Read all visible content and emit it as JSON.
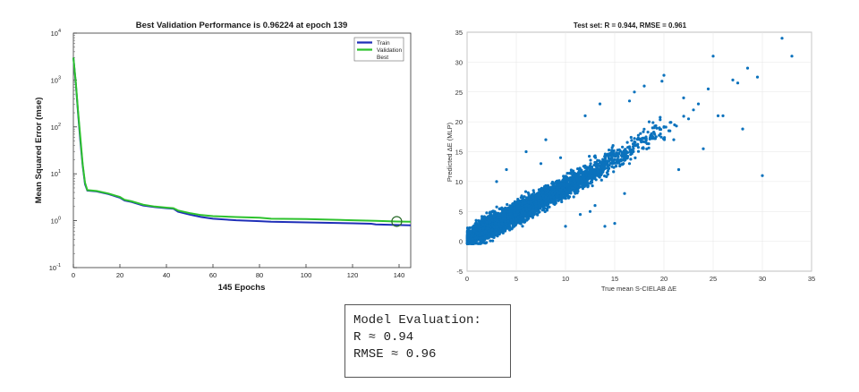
{
  "chart_data": [
    {
      "type": "line",
      "title": "Best Validation Performance is 0.96224 at epoch 139",
      "xlabel": "145 Epochs",
      "ylabel": "Mean Squared Error  (mse)",
      "xlim": [
        0,
        145
      ],
      "ylim": [
        0.1,
        10000
      ],
      "yscale": "log",
      "x_ticks": [
        "0",
        "20",
        "40",
        "60",
        "80",
        "100",
        "120",
        "140"
      ],
      "y_ticks": [
        {
          "base": "10",
          "exp": "-1"
        },
        {
          "base": "10",
          "exp": "0"
        },
        {
          "base": "10",
          "exp": "1"
        },
        {
          "base": "10",
          "exp": "2"
        },
        {
          "base": "10",
          "exp": "3"
        },
        {
          "base": "10",
          "exp": "4"
        }
      ],
      "legend": {
        "position": "top-right",
        "entries": [
          "Train",
          "Validation",
          "Best"
        ]
      },
      "series": [
        {
          "name": "Train",
          "color": "#1f2fb8",
          "points": [
            [
              0,
              3000
            ],
            [
              1,
              900
            ],
            [
              2,
              200
            ],
            [
              3,
              50
            ],
            [
              4,
              15
            ],
            [
              5,
              6
            ],
            [
              6,
              4.4
            ],
            [
              10,
              4.2
            ],
            [
              15,
              3.7
            ],
            [
              20,
              3.1
            ],
            [
              22,
              2.7
            ],
            [
              25,
              2.5
            ],
            [
              30,
              2.1
            ],
            [
              35,
              1.95
            ],
            [
              40,
              1.85
            ],
            [
              43,
              1.8
            ],
            [
              45,
              1.55
            ],
            [
              50,
              1.35
            ],
            [
              55,
              1.2
            ],
            [
              60,
              1.1
            ],
            [
              70,
              1.02
            ],
            [
              80,
              0.98
            ],
            [
              85,
              0.95
            ],
            [
              100,
              0.92
            ],
            [
              120,
              0.88
            ],
            [
              128,
              0.86
            ],
            [
              130,
              0.83
            ],
            [
              139,
              0.81
            ],
            [
              145,
              0.8
            ]
          ]
        },
        {
          "name": "Validation",
          "color": "#2ec22e",
          "points": [
            [
              0,
              3000
            ],
            [
              1,
              950
            ],
            [
              2,
              220
            ],
            [
              3,
              60
            ],
            [
              4,
              16
            ],
            [
              5,
              6.5
            ],
            [
              6,
              4.5
            ],
            [
              10,
              4.3
            ],
            [
              15,
              3.8
            ],
            [
              20,
              3.2
            ],
            [
              22,
              2.8
            ],
            [
              25,
              2.6
            ],
            [
              30,
              2.2
            ],
            [
              35,
              2.0
            ],
            [
              40,
              1.9
            ],
            [
              43,
              1.85
            ],
            [
              45,
              1.65
            ],
            [
              50,
              1.45
            ],
            [
              55,
              1.32
            ],
            [
              60,
              1.25
            ],
            [
              70,
              1.2
            ],
            [
              80,
              1.16
            ],
            [
              85,
              1.1
            ],
            [
              100,
              1.08
            ],
            [
              120,
              1.02
            ],
            [
              130,
              0.99
            ],
            [
              139,
              0.96
            ],
            [
              145,
              0.95
            ]
          ]
        }
      ],
      "best": {
        "epoch": 139,
        "value": 0.96224,
        "color": "#2a6b2a"
      }
    },
    {
      "type": "scatter",
      "title": "Test set: R = 0.944, RMSE = 0.961",
      "xlabel": "True mean S-CIELAB ΔE",
      "ylabel": "Predicted ΔE (MLP)",
      "xlim": [
        0,
        35
      ],
      "ylim": [
        -5,
        35
      ],
      "x_ticks": [
        "0",
        "5",
        "10",
        "15",
        "20",
        "25",
        "30",
        "35"
      ],
      "y_ticks": [
        "-5",
        "0",
        "5",
        "10",
        "15",
        "20",
        "25",
        "30",
        "35"
      ],
      "grid": true,
      "point_color": "#0b72bd",
      "points": [
        [
          32.0,
          34.0
        ],
        [
          33.0,
          31.0
        ],
        [
          28.5,
          29.0
        ],
        [
          29.5,
          27.5
        ],
        [
          27.0,
          27.0
        ],
        [
          27.5,
          26.5
        ],
        [
          28.0,
          18.8
        ],
        [
          30.0,
          11.0
        ],
        [
          25.0,
          31.0
        ],
        [
          20.0,
          27.8
        ],
        [
          19.8,
          26.8
        ],
        [
          24.5,
          25.5
        ],
        [
          25.5,
          21.0
        ],
        [
          26.0,
          21.0
        ],
        [
          24.0,
          15.5
        ],
        [
          23.0,
          22.0
        ],
        [
          22.5,
          20.5
        ],
        [
          21.5,
          12.0
        ],
        [
          18.0,
          26.0
        ],
        [
          17.0,
          25.0
        ],
        [
          16.5,
          23.5
        ],
        [
          13.5,
          23.0
        ],
        [
          12.0,
          21.0
        ],
        [
          18.5,
          20.0
        ],
        [
          19.0,
          19.0
        ],
        [
          15.0,
          3.0
        ],
        [
          14.0,
          2.5
        ],
        [
          16.0,
          8.0
        ],
        [
          8.0,
          17.0
        ],
        [
          6.0,
          15.0
        ],
        [
          4.0,
          12.0
        ],
        [
          3.0,
          10.0
        ],
        [
          11.5,
          4.5
        ],
        [
          13.0,
          6.0
        ],
        [
          10.0,
          2.5
        ],
        [
          12.5,
          5.0
        ],
        [
          9.5,
          14.0
        ],
        [
          7.5,
          13.0
        ],
        [
          20.5,
          18.5
        ],
        [
          21.0,
          17.0
        ],
        [
          22.0,
          24.0
        ],
        [
          23.5,
          23.0
        ]
      ],
      "cloud": [
        {
          "x": 3,
          "y": 3,
          "sx": 2.5,
          "sy": 2.2,
          "count": 2600
        },
        {
          "x": 7,
          "y": 6.5,
          "sx": 2.4,
          "sy": 2.2,
          "count": 1400
        },
        {
          "x": 11,
          "y": 10,
          "sx": 2.2,
          "sy": 2.2,
          "count": 600
        },
        {
          "x": 15,
          "y": 14,
          "sx": 2.2,
          "sy": 2.5,
          "count": 220
        },
        {
          "x": 19,
          "y": 18,
          "sx": 2.0,
          "sy": 2.6,
          "count": 60
        }
      ]
    }
  ],
  "evaluation": {
    "heading": "Model Evaluation:",
    "r_line": "R ≈ 0.94",
    "rmse_line": "RMSE ≈ 0.96"
  }
}
